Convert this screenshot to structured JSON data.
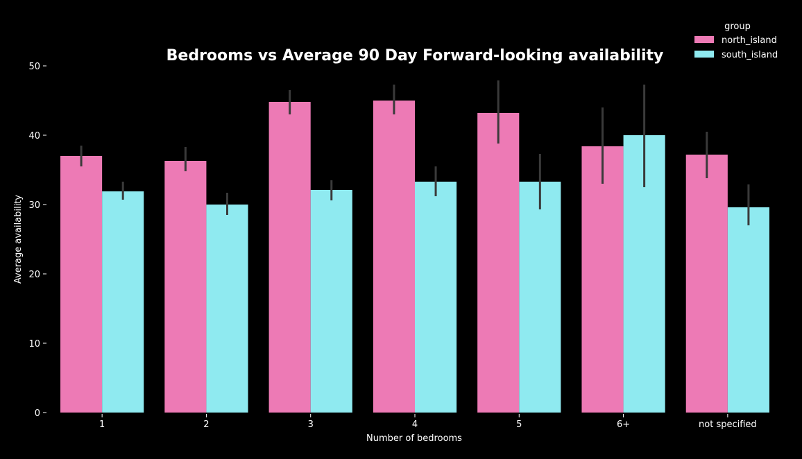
{
  "chart_data": {
    "type": "bar",
    "title": "Bedrooms vs  Average 90 Day Forward-looking availability",
    "xlabel": "Number of bedrooms",
    "ylabel": "Average availability",
    "categories": [
      "1",
      "2",
      "3",
      "4",
      "5",
      "6+",
      "not specified"
    ],
    "ylim": [
      0,
      50
    ],
    "yticks": [
      0,
      10,
      20,
      30,
      40,
      50
    ],
    "grid": false,
    "legend": {
      "title": "group",
      "placement": "top-right"
    },
    "series": [
      {
        "name": "north_island",
        "color": "#ed7ab5",
        "values": [
          37.0,
          36.3,
          44.8,
          45.0,
          43.2,
          38.4,
          37.2
        ],
        "error_low": [
          35.5,
          34.8,
          43.0,
          43.0,
          38.8,
          33.0,
          33.8
        ],
        "error_high": [
          38.5,
          38.3,
          46.5,
          47.3,
          47.9,
          44.0,
          40.5
        ]
      },
      {
        "name": "south_island",
        "color": "#8feaf0",
        "values": [
          31.9,
          30.0,
          32.1,
          33.3,
          33.3,
          40.0,
          29.6
        ],
        "error_low": [
          30.7,
          28.5,
          30.6,
          31.2,
          29.3,
          32.5,
          27.0
        ],
        "error_high": [
          33.3,
          31.7,
          33.5,
          35.5,
          37.3,
          47.3,
          32.9
        ]
      }
    ],
    "error_bar_color": "#3a3a3a"
  }
}
